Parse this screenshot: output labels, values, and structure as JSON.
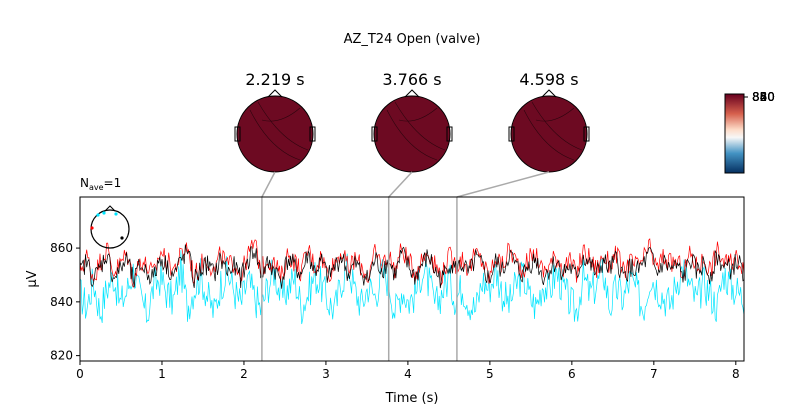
{
  "chart_data": {
    "type": "line",
    "title": "AZ_T24 Open (valve)",
    "nave_prefix": "N",
    "nave_sub": "ave",
    "nave_value": "=1",
    "xlabel": "Time (s)",
    "ylabel": "µV",
    "xlim": [
      0,
      8.1
    ],
    "ylim": [
      818,
      879
    ],
    "x_ticks": [
      0,
      1,
      2,
      3,
      4,
      5,
      6,
      7,
      8
    ],
    "y_ticks": [
      820,
      840,
      860
    ],
    "topomap_times": [
      "2.219 s",
      "3.766 s",
      "4.598 s"
    ],
    "topomap_time_values": [
      2.219,
      3.766,
      4.598
    ],
    "topomap_color": "#6d0a22",
    "colorbar_tick_labels": [
      "880",
      "860",
      "850",
      "840",
      "820"
    ],
    "series": [
      {
        "color": "#00e5ff",
        "mean": 842,
        "spread": 14,
        "values": [
          843,
          838,
          848,
          836,
          845,
          850,
          839,
          844,
          852,
          841,
          835,
          846,
          849,
          843,
          840,
          853,
          838,
          845,
          850,
          842,
          836,
          847,
          851,
          844,
          839,
          848,
          842,
          837,
          846,
          852,
          841,
          845,
          849,
          838,
          843,
          850,
          846,
          840,
          837,
          848,
          853,
          844,
          839,
          846,
          842,
          851,
          848,
          836,
          845,
          840,
          843,
          852,
          847,
          838,
          844,
          849,
          841,
          846,
          840,
          837,
          848,
          845,
          852,
          843,
          839,
          846,
          850,
          842,
          838,
          847,
          844,
          851,
          845,
          840,
          836,
          849,
          843,
          846,
          852,
          838,
          845,
          841,
          848,
          844,
          837,
          850,
          846,
          842,
          839,
          848,
          853,
          845,
          840,
          847,
          843,
          838,
          851,
          846,
          844,
          841
        ]
      },
      {
        "color": "#ff0000",
        "mean": 853,
        "spread": 8,
        "values": [
          852,
          857,
          849,
          855,
          860,
          851,
          854,
          858,
          848,
          856,
          853,
          850,
          859,
          855,
          852,
          857,
          861,
          849,
          854,
          856,
          851,
          858,
          853,
          855,
          850,
          857,
          862,
          852,
          856,
          854,
          849,
          858,
          855,
          851,
          860,
          853,
          857,
          850,
          855,
          859,
          852,
          856,
          853,
          849,
          858,
          854,
          857,
          852,
          860,
          855,
          851,
          856,
          859,
          853,
          850,
          857,
          854,
          856,
          852,
          858,
          855,
          849,
          857,
          853,
          860,
          855,
          852,
          856,
          858,
          851,
          854,
          857,
          853,
          855,
          850,
          859,
          856,
          852,
          857,
          854,
          858,
          851,
          855,
          853,
          856,
          860,
          852,
          857,
          854,
          855,
          851,
          858,
          853,
          856,
          852,
          859,
          855,
          854,
          857,
          853
        ]
      },
      {
        "color": "#000000",
        "mean": 852,
        "spread": 8,
        "values": [
          851,
          855,
          848,
          853,
          858,
          849,
          852,
          856,
          847,
          854,
          851,
          849,
          857,
          853,
          850,
          855,
          859,
          848,
          852,
          854,
          850,
          856,
          851,
          853,
          849,
          855,
          860,
          850,
          854,
          852,
          848,
          856,
          853,
          850,
          858,
          851,
          855,
          849,
          853,
          857,
          850,
          854,
          851,
          848,
          856,
          852,
          855,
          850,
          858,
          853,
          849,
          854,
          857,
          851,
          848,
          855,
          852,
          854,
          850,
          856,
          853,
          848,
          855,
          851,
          858,
          853,
          850,
          854,
          856,
          849,
          852,
          855,
          851,
          853,
          849,
          857,
          854,
          850,
          855,
          852,
          856,
          849,
          853,
          851,
          854,
          858,
          850,
          855,
          852,
          853,
          849,
          856,
          851,
          854,
          850,
          857,
          853,
          852,
          855,
          851
        ]
      }
    ]
  }
}
